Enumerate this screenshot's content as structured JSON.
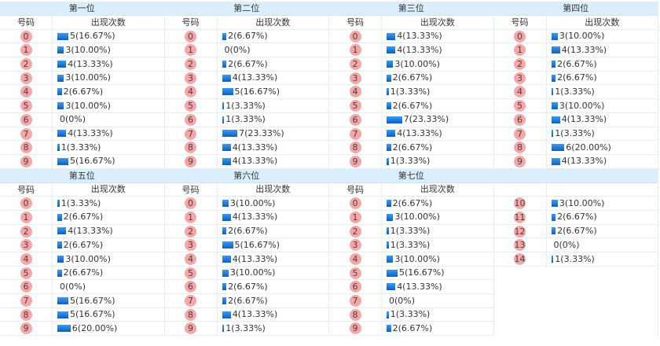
{
  "headers": {
    "num": "号码",
    "count": "出现次数"
  },
  "colors": {
    "header_bg": "#dbeefb",
    "ball": "#f6a6a6",
    "bar": "#1f7fe0"
  },
  "positions": [
    {
      "title": "第一位",
      "rows": [
        {
          "n": "0",
          "c": 5,
          "t": "5(16.67%)"
        },
        {
          "n": "1",
          "c": 3,
          "t": "3(10.00%)"
        },
        {
          "n": "2",
          "c": 4,
          "t": "4(13.33%)"
        },
        {
          "n": "3",
          "c": 3,
          "t": "3(10.00%)"
        },
        {
          "n": "4",
          "c": 2,
          "t": "2(6.67%)"
        },
        {
          "n": "5",
          "c": 3,
          "t": "3(10.00%)"
        },
        {
          "n": "6",
          "c": 0,
          "t": "0(0%)"
        },
        {
          "n": "7",
          "c": 4,
          "t": "4(13.33%)"
        },
        {
          "n": "8",
          "c": 1,
          "t": "1(3.33%)"
        },
        {
          "n": "9",
          "c": 5,
          "t": "5(16.67%)"
        }
      ]
    },
    {
      "title": "第二位",
      "rows": [
        {
          "n": "0",
          "c": 2,
          "t": "2(6.67%)"
        },
        {
          "n": "1",
          "c": 0,
          "t": "0(0%)"
        },
        {
          "n": "2",
          "c": 2,
          "t": "2(6.67%)"
        },
        {
          "n": "3",
          "c": 4,
          "t": "4(13.33%)"
        },
        {
          "n": "4",
          "c": 5,
          "t": "5(16.67%)"
        },
        {
          "n": "5",
          "c": 1,
          "t": "1(3.33%)"
        },
        {
          "n": "6",
          "c": 1,
          "t": "1(3.33%)"
        },
        {
          "n": "7",
          "c": 7,
          "t": "7(23.33%)"
        },
        {
          "n": "8",
          "c": 4,
          "t": "4(13.33%)"
        },
        {
          "n": "9",
          "c": 4,
          "t": "4(13.33%)"
        }
      ]
    },
    {
      "title": "第三位",
      "rows": [
        {
          "n": "0",
          "c": 4,
          "t": "4(13.33%)"
        },
        {
          "n": "1",
          "c": 4,
          "t": "4(13.33%)"
        },
        {
          "n": "2",
          "c": 3,
          "t": "3(10.00%)"
        },
        {
          "n": "3",
          "c": 2,
          "t": "2(6.67%)"
        },
        {
          "n": "4",
          "c": 1,
          "t": "1(3.33%)"
        },
        {
          "n": "5",
          "c": 2,
          "t": "2(6.67%)"
        },
        {
          "n": "6",
          "c": 7,
          "t": "7(23.33%)"
        },
        {
          "n": "7",
          "c": 4,
          "t": "4(13.33%)"
        },
        {
          "n": "8",
          "c": 2,
          "t": "2(6.67%)"
        },
        {
          "n": "9",
          "c": 1,
          "t": "1(3.33%)"
        }
      ]
    },
    {
      "title": "第四位",
      "rows": [
        {
          "n": "0",
          "c": 3,
          "t": "3(10.00%)"
        },
        {
          "n": "1",
          "c": 4,
          "t": "4(13.33%)"
        },
        {
          "n": "2",
          "c": 2,
          "t": "2(6.67%)"
        },
        {
          "n": "3",
          "c": 2,
          "t": "2(6.67%)"
        },
        {
          "n": "4",
          "c": 1,
          "t": "1(3.33%)"
        },
        {
          "n": "5",
          "c": 3,
          "t": "3(10.00%)"
        },
        {
          "n": "6",
          "c": 4,
          "t": "4(13.33%)"
        },
        {
          "n": "7",
          "c": 1,
          "t": "1(3.33%)"
        },
        {
          "n": "8",
          "c": 6,
          "t": "6(20.00%)"
        },
        {
          "n": "9",
          "c": 4,
          "t": "4(13.33%)"
        }
      ]
    },
    {
      "title": "第五位",
      "rows": [
        {
          "n": "0",
          "c": 1,
          "t": "1(3.33%)"
        },
        {
          "n": "1",
          "c": 2,
          "t": "2(6.67%)"
        },
        {
          "n": "2",
          "c": 4,
          "t": "4(13.33%)"
        },
        {
          "n": "3",
          "c": 2,
          "t": "2(6.67%)"
        },
        {
          "n": "4",
          "c": 3,
          "t": "3(10.00%)"
        },
        {
          "n": "5",
          "c": 2,
          "t": "2(6.67%)"
        },
        {
          "n": "6",
          "c": 0,
          "t": "0(0%)"
        },
        {
          "n": "7",
          "c": 5,
          "t": "5(16.67%)"
        },
        {
          "n": "8",
          "c": 5,
          "t": "5(16.67%)"
        },
        {
          "n": "9",
          "c": 6,
          "t": "6(20.00%)"
        }
      ]
    },
    {
      "title": "第六位",
      "rows": [
        {
          "n": "0",
          "c": 3,
          "t": "3(10.00%)"
        },
        {
          "n": "1",
          "c": 4,
          "t": "4(13.33%)"
        },
        {
          "n": "2",
          "c": 2,
          "t": "2(6.67%)"
        },
        {
          "n": "3",
          "c": 5,
          "t": "5(16.67%)"
        },
        {
          "n": "4",
          "c": 4,
          "t": "4(13.33%)"
        },
        {
          "n": "5",
          "c": 3,
          "t": "3(10.00%)"
        },
        {
          "n": "6",
          "c": 2,
          "t": "2(6.67%)"
        },
        {
          "n": "7",
          "c": 2,
          "t": "2(6.67%)"
        },
        {
          "n": "8",
          "c": 4,
          "t": "4(13.33%)"
        },
        {
          "n": "9",
          "c": 1,
          "t": "1(3.33%)"
        }
      ]
    },
    {
      "title": "第七位",
      "rows": [
        {
          "n": "0",
          "c": 2,
          "t": "2(6.67%)"
        },
        {
          "n": "1",
          "c": 3,
          "t": "3(10.00%)"
        },
        {
          "n": "2",
          "c": 1,
          "t": "1(3.33%)"
        },
        {
          "n": "3",
          "c": 1,
          "t": "1(3.33%)"
        },
        {
          "n": "4",
          "c": 3,
          "t": "3(10.00%)"
        },
        {
          "n": "5",
          "c": 5,
          "t": "5(16.67%)"
        },
        {
          "n": "6",
          "c": 4,
          "t": "4(13.33%)"
        },
        {
          "n": "7",
          "c": 0,
          "t": "0(0%)"
        },
        {
          "n": "8",
          "c": 1,
          "t": "1(3.33%)"
        },
        {
          "n": "9",
          "c": 2,
          "t": "2(6.67%)"
        }
      ]
    },
    {
      "title": "",
      "noSub": true,
      "rows": [
        {
          "n": "10",
          "c": 3,
          "t": "3(10.00%)"
        },
        {
          "n": "11",
          "c": 2,
          "t": "2(6.67%)"
        },
        {
          "n": "12",
          "c": 2,
          "t": "2(6.67%)"
        },
        {
          "n": "13",
          "c": 0,
          "t": "0(0%)"
        },
        {
          "n": "14",
          "c": 1,
          "t": "1(3.33%)"
        }
      ]
    }
  ]
}
